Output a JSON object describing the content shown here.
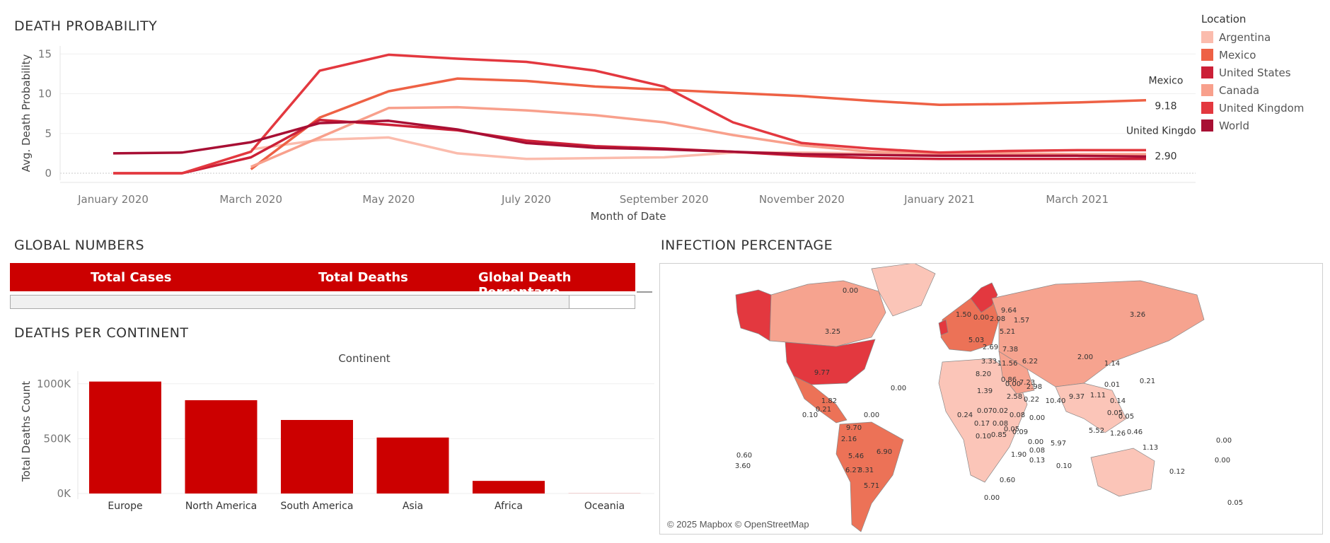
{
  "titles": {
    "death_probability": "DEATH PROBABILITY",
    "global_numbers": "GLOBAL NUMBERS",
    "deaths_per_continent": "DEATHS PER CONTINENT",
    "infection_percentage": "INFECTION PERCENTAGE"
  },
  "legend": {
    "title": "Location",
    "items": [
      {
        "label": "Argentina",
        "color": "#fbbcad"
      },
      {
        "label": "Mexico",
        "color": "#ee6145"
      },
      {
        "label": "United States",
        "color": "#cc2037"
      },
      {
        "label": "Canada",
        "color": "#f8a08c"
      },
      {
        "label": "United Kingdom",
        "color": "#e3383f"
      },
      {
        "label": "World",
        "color": "#a80f34"
      }
    ]
  },
  "global_numbers": {
    "headers": [
      "Total Cases",
      "Total Deaths",
      "Global Death Percentage"
    ],
    "header_color": "#cc0000"
  },
  "map": {
    "attribution": "© 2025 Mapbox © OpenStreetMap",
    "labels": [
      "0.00",
      "3.25",
      "9.77",
      "0.00",
      "1.82",
      "0.10",
      "0.21",
      "0.00",
      "9.70",
      "2.16",
      "5.46",
      "6.90",
      "6.27",
      "3.31",
      "5.71",
      "0.60",
      "3.60",
      "0.00",
      "1.50",
      "0.00",
      "2.08",
      "9.64",
      "1.57",
      "5.21",
      "5.03",
      "2.69",
      "7.38",
      "3.33",
      "11.56",
      "6.22",
      "8.20",
      "0.86",
      "7.23",
      "0.00",
      "2.98",
      "1.39",
      "2.58",
      "0.22",
      "10.40",
      "9.37",
      "1.11",
      "0.24",
      "0.07",
      "0.02",
      "0.08",
      "0.17",
      "0.08",
      "0.05",
      "0.10",
      "0.85",
      "0.09",
      "0.00",
      "0.00",
      "0.08",
      "1.90",
      "0.13",
      "0.10",
      "0.60",
      "5.97",
      "5.52",
      "3.26",
      "2.00",
      "1.14",
      "0.01",
      "0.21",
      "0.14",
      "0.05",
      "0.05",
      "1.26",
      "0.46",
      "1.13",
      "0.00",
      "0.00",
      "0.12",
      "0.05"
    ],
    "accent": "#e3383f"
  },
  "chart_data": [
    {
      "type": "line",
      "title": "DEATH PROBABILITY",
      "xlabel": "Month of Date",
      "ylabel": "Avg. Death Probability",
      "x": [
        "2020-01",
        "2020-02",
        "2020-03",
        "2020-04",
        "2020-05",
        "2020-06",
        "2020-07",
        "2020-08",
        "2020-09",
        "2020-10",
        "2020-11",
        "2020-12",
        "2021-01",
        "2021-02",
        "2021-03",
        "2021-04"
      ],
      "xticks": [
        "January 2020",
        "March 2020",
        "May 2020",
        "July 2020",
        "September 2020",
        "November 2020",
        "January 2021",
        "March 2021"
      ],
      "ylim": [
        0,
        16
      ],
      "yticks": [
        "0",
        "5",
        "10",
        "15"
      ],
      "grid": true,
      "legend_position": "right",
      "series": [
        {
          "name": "Argentina",
          "color": "#fbbcad",
          "values": [
            null,
            null,
            3.0,
            4.2,
            4.5,
            2.5,
            1.8,
            1.9,
            2.0,
            2.6,
            2.6,
            2.5,
            2.4,
            2.4,
            2.3,
            2.3
          ]
        },
        {
          "name": "Mexico",
          "color": "#ee6145",
          "values": [
            null,
            null,
            0.5,
            7.0,
            10.3,
            11.9,
            11.6,
            10.9,
            10.5,
            10.1,
            9.7,
            9.1,
            8.6,
            8.7,
            8.9,
            9.18
          ]
        },
        {
          "name": "United States",
          "color": "#cc2037",
          "values": [
            0.0,
            0.0,
            2.0,
            6.7,
            6.1,
            5.4,
            4.1,
            3.4,
            3.1,
            2.7,
            2.2,
            1.9,
            1.8,
            1.8,
            1.8,
            1.8
          ]
        },
        {
          "name": "Canada",
          "color": "#f8a08c",
          "values": [
            null,
            null,
            0.8,
            4.5,
            8.2,
            8.3,
            7.9,
            7.3,
            6.4,
            4.8,
            3.5,
            2.7,
            2.5,
            2.5,
            2.4,
            2.4
          ]
        },
        {
          "name": "United Kingdom",
          "color": "#e3383f",
          "values": [
            0.0,
            0.0,
            2.7,
            12.9,
            14.9,
            14.4,
            14.0,
            12.9,
            10.9,
            6.4,
            3.8,
            3.1,
            2.6,
            2.8,
            2.9,
            2.9
          ]
        },
        {
          "name": "World",
          "color": "#a80f34",
          "values": [
            2.5,
            2.6,
            3.9,
            6.3,
            6.6,
            5.5,
            3.8,
            3.2,
            3.0,
            2.7,
            2.4,
            2.3,
            2.2,
            2.2,
            2.2,
            2.1
          ]
        }
      ],
      "annotations": [
        {
          "series": "Mexico",
          "name": "Mexico",
          "value": "9.18"
        },
        {
          "series": "United Kingdom",
          "name": "United Kingdom",
          "value": "2.90"
        }
      ]
    },
    {
      "type": "bar",
      "title": "DEATHS PER CONTINENT",
      "header": "Continent",
      "ylabel": "Total Deaths Count",
      "categories": [
        "Europe",
        "North America",
        "South America",
        "Asia",
        "Africa",
        "Oceania"
      ],
      "values": [
        1020000,
        850000,
        670000,
        510000,
        115000,
        1000
      ],
      "ylim": [
        0,
        1050000
      ],
      "yticks": [
        {
          "v": 0,
          "label": "0K"
        },
        {
          "v": 500000,
          "label": "500K"
        },
        {
          "v": 1000000,
          "label": "1000K"
        }
      ],
      "color": "#cc0000"
    }
  ]
}
